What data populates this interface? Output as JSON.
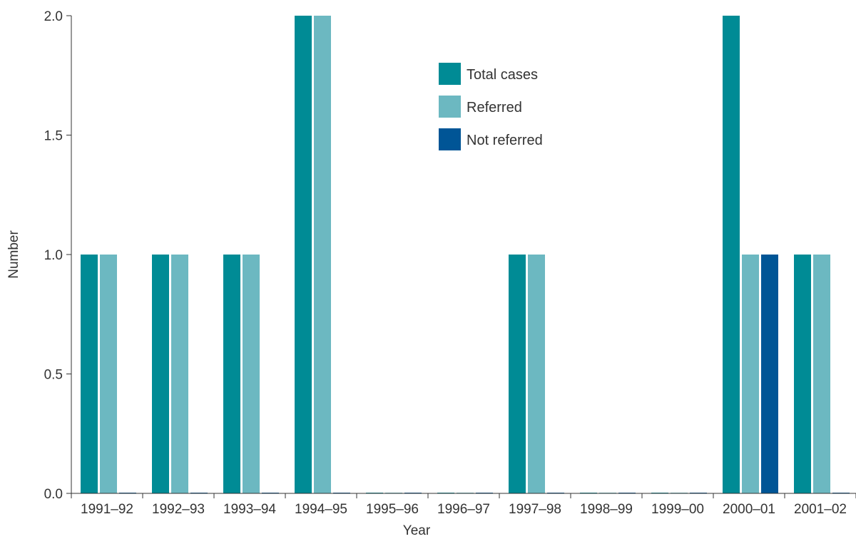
{
  "chart_data": {
    "type": "bar",
    "title": "",
    "xlabel": "Year",
    "ylabel": "Number",
    "ylim": [
      0,
      2
    ],
    "yticks": [
      "0.0",
      "0.5",
      "1.0",
      "1.5",
      "2.0"
    ],
    "grid": false,
    "legend_position": "top-center",
    "categories": [
      "1991–92",
      "1992–93",
      "1993–94",
      "1994–95",
      "1995–96",
      "1996–97",
      "1997–98",
      "1998–99",
      "1999–00",
      "2000–01",
      "2001–02"
    ],
    "series": [
      {
        "name": "Total cases",
        "color": "#008b95",
        "values": [
          1,
          1,
          1,
          2,
          0,
          0,
          1,
          0,
          0,
          2,
          1
        ]
      },
      {
        "name": "Referred",
        "color": "#6cb8c1",
        "values": [
          1,
          1,
          1,
          2,
          0,
          0,
          1,
          0,
          0,
          1,
          1
        ]
      },
      {
        "name": "Not referred",
        "color": "#005596",
        "values": [
          0,
          0,
          0,
          0,
          0,
          0,
          0,
          0,
          0,
          1,
          0
        ]
      }
    ]
  }
}
